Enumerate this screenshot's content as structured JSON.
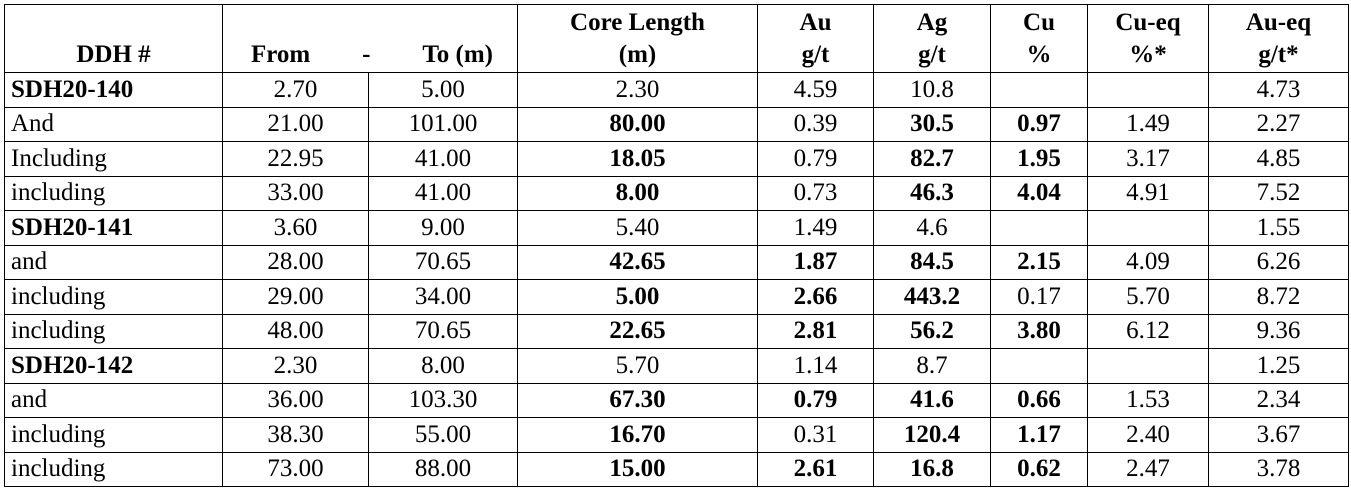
{
  "table": {
    "header": [
      [
        "DDH #"
      ],
      [
        "From",
        "-",
        "To (m)"
      ],
      [
        "Core Length",
        "(m)"
      ],
      [
        "Au",
        "g/t"
      ],
      [
        "Ag",
        "g/t"
      ],
      [
        "Cu",
        "%"
      ],
      [
        "Cu-eq",
        "%*"
      ],
      [
        "Au-eq",
        "g/t*"
      ]
    ],
    "rows": [
      {
        "cells": [
          "SDH20-140",
          "2.70",
          "5.00",
          "2.30",
          "4.59",
          "10.8",
          null,
          null,
          "4.73"
        ],
        "bold": [
          0
        ]
      },
      {
        "cells": [
          "And",
          "21.00",
          "101.00",
          "80.00",
          "0.39",
          "30.5",
          "0.97",
          "1.49",
          "2.27"
        ],
        "bold": [
          3,
          5,
          6
        ]
      },
      {
        "cells": [
          "Including",
          "22.95",
          "41.00",
          "18.05",
          "0.79",
          "82.7",
          "1.95",
          "3.17",
          "4.85"
        ],
        "bold": [
          3,
          5,
          6
        ]
      },
      {
        "cells": [
          "including",
          "33.00",
          "41.00",
          "8.00",
          "0.73",
          "46.3",
          "4.04",
          "4.91",
          "7.52"
        ],
        "bold": [
          3,
          5,
          6
        ]
      },
      {
        "cells": [
          "SDH20-141",
          "3.60",
          "9.00",
          "5.40",
          "1.49",
          "4.6",
          null,
          null,
          "1.55"
        ],
        "bold": [
          0
        ]
      },
      {
        "cells": [
          "and",
          "28.00",
          "70.65",
          "42.65",
          "1.87",
          "84.5",
          "2.15",
          "4.09",
          "6.26"
        ],
        "bold": [
          3,
          4,
          5,
          6
        ]
      },
      {
        "cells": [
          "including",
          "29.00",
          "34.00",
          "5.00",
          "2.66",
          "443.2",
          "0.17",
          "5.70",
          "8.72"
        ],
        "bold": [
          3,
          4,
          5
        ]
      },
      {
        "cells": [
          "including",
          "48.00",
          "70.65",
          "22.65",
          "2.81",
          "56.2",
          "3.80",
          "6.12",
          "9.36"
        ],
        "bold": [
          3,
          4,
          5,
          6
        ]
      },
      {
        "cells": [
          "SDH20-142",
          "2.30",
          "8.00",
          "5.70",
          "1.14",
          "8.7",
          null,
          null,
          "1.25"
        ],
        "bold": [
          0
        ]
      },
      {
        "cells": [
          "and",
          "36.00",
          "103.30",
          "67.30",
          "0.79",
          "41.6",
          "0.66",
          "1.53",
          "2.34"
        ],
        "bold": [
          3,
          4,
          5,
          6
        ]
      },
      {
        "cells": [
          "including",
          "38.30",
          "55.00",
          "16.70",
          "0.31",
          "120.4",
          "1.17",
          "2.40",
          "3.67"
        ],
        "bold": [
          3,
          5,
          6
        ]
      },
      {
        "cells": [
          "including",
          "73.00",
          "88.00",
          "15.00",
          "2.61",
          "16.8",
          "0.62",
          "2.47",
          "3.78"
        ],
        "bold": [
          3,
          4,
          5,
          6
        ]
      }
    ]
  }
}
